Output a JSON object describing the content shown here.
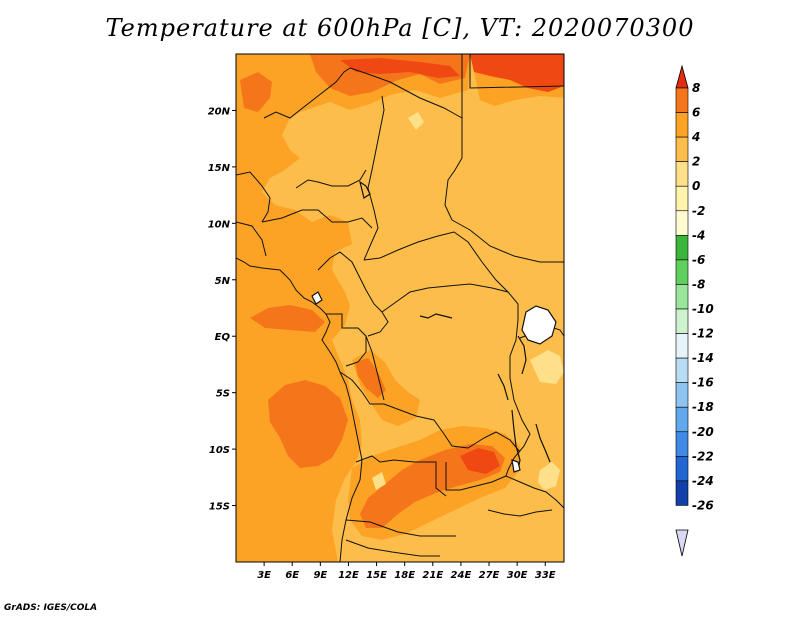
{
  "title": "Temperature at 600hPa [C], VT: 2020070300",
  "credit": "GrADS: IGES/COLA",
  "map": {
    "lon_range": [
      0,
      35
    ],
    "lat_range": [
      -20,
      25
    ],
    "lat_ticks": [
      {
        "value": 20,
        "label": "20N"
      },
      {
        "value": 15,
        "label": "15N"
      },
      {
        "value": 10,
        "label": "10N"
      },
      {
        "value": 5,
        "label": "5N"
      },
      {
        "value": 0,
        "label": "EQ"
      },
      {
        "value": -5,
        "label": "5S"
      },
      {
        "value": -10,
        "label": "10S"
      },
      {
        "value": -15,
        "label": "15S"
      }
    ],
    "lon_ticks": [
      {
        "value": 3,
        "label": "3E"
      },
      {
        "value": 6,
        "label": "6E"
      },
      {
        "value": 9,
        "label": "9E"
      },
      {
        "value": 12,
        "label": "12E"
      },
      {
        "value": 15,
        "label": "15E"
      },
      {
        "value": 18,
        "label": "18E"
      },
      {
        "value": 21,
        "label": "21E"
      },
      {
        "value": 24,
        "label": "24E"
      },
      {
        "value": 27,
        "label": "27E"
      },
      {
        "value": 30,
        "label": "30E"
      },
      {
        "value": 33,
        "label": "33E"
      }
    ],
    "field_colors": {
      "t_neg2_0": "#fee08b",
      "t_0_2": "#fdbd4b",
      "t_2_4": "#fca326",
      "t_4_6": "#f5751a",
      "t_6_8": "#f04812",
      "water": "#ffffff"
    }
  },
  "colorbar": {
    "labels": [
      "8",
      "6",
      "4",
      "2",
      "0",
      "-2",
      "-4",
      "-6",
      "-8",
      "-10",
      "-12",
      "-14",
      "-16",
      "-18",
      "-20",
      "-22",
      "-24",
      "-26"
    ],
    "colors": [
      "#f5360f",
      "#f5751a",
      "#fca326",
      "#fdbd4b",
      "#fee08b",
      "#fff3ad",
      "#fffbd0",
      "#3bb53b",
      "#5fcf5f",
      "#9ae59a",
      "#cdf2cd",
      "#e6f4fa",
      "#b9dcf5",
      "#8fc4f0",
      "#62a8ec",
      "#3f8ae4",
      "#2166d1",
      "#1141a8",
      "#061f6b"
    ],
    "top_arrow_color": "#e52b0d",
    "bottom_arrow_color": "#d8d8f4"
  }
}
